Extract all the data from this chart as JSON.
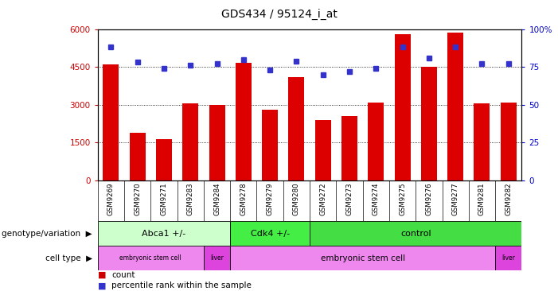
{
  "title": "GDS434 / 95124_i_at",
  "samples": [
    "GSM9269",
    "GSM9270",
    "GSM9271",
    "GSM9283",
    "GSM9284",
    "GSM9278",
    "GSM9279",
    "GSM9280",
    "GSM9272",
    "GSM9273",
    "GSM9274",
    "GSM9275",
    "GSM9276",
    "GSM9277",
    "GSM9281",
    "GSM9282"
  ],
  "counts": [
    4600,
    1900,
    1650,
    3050,
    3000,
    4650,
    2800,
    4100,
    2400,
    2550,
    3100,
    5800,
    4500,
    5850,
    3050,
    3100
  ],
  "percentiles": [
    88,
    78,
    74,
    76,
    77,
    80,
    73,
    79,
    70,
    72,
    74,
    88,
    81,
    88,
    77,
    77
  ],
  "ylim_left": [
    0,
    6000
  ],
  "ylim_right": [
    0,
    100
  ],
  "yticks_left": [
    0,
    1500,
    3000,
    4500,
    6000
  ],
  "yticks_right": [
    0,
    25,
    50,
    75,
    100
  ],
  "bar_color": "#dd0000",
  "dot_color": "#3333cc",
  "genotype_groups": [
    {
      "label": "Abca1 +/-",
      "start": 0,
      "end": 5,
      "color": "#ccffcc"
    },
    {
      "label": "Cdk4 +/-",
      "start": 5,
      "end": 8,
      "color": "#44ee44"
    },
    {
      "label": "control",
      "start": 8,
      "end": 16,
      "color": "#44dd44"
    }
  ],
  "celltype_groups": [
    {
      "label": "embryonic stem cell",
      "start": 0,
      "end": 4,
      "color": "#ee88ee"
    },
    {
      "label": "liver",
      "start": 4,
      "end": 5,
      "color": "#dd44dd"
    },
    {
      "label": "embryonic stem cell",
      "start": 5,
      "end": 15,
      "color": "#ee88ee"
    },
    {
      "label": "liver",
      "start": 15,
      "end": 16,
      "color": "#dd44dd"
    }
  ],
  "legend_count_color": "#cc0000",
  "legend_pct_color": "#3333cc",
  "bg_color": "#ffffff",
  "plot_bg_color": "#ffffff",
  "grid_color": "#000000",
  "label_color_left": "#cc0000",
  "label_color_right": "#0000cc",
  "xtick_bg_color": "#cccccc"
}
